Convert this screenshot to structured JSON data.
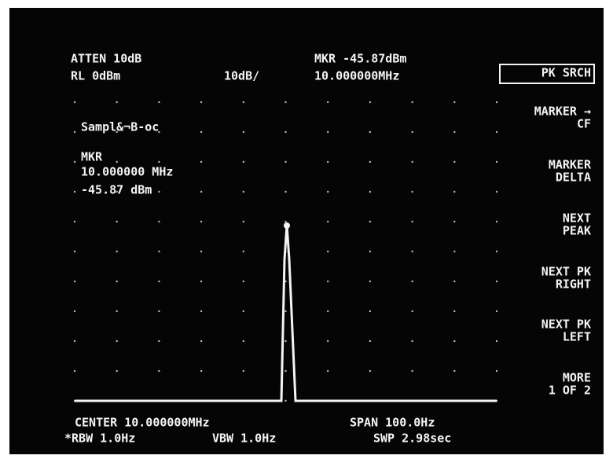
{
  "header": {
    "atten": "ATTEN 10dB",
    "ref_level": "RL 0dBm",
    "scale": "10dB/",
    "marker_amplitude": "MKR -45.87dBm",
    "marker_frequency": "10.000000MHz"
  },
  "detector": "Sampl&¬B-oc",
  "marker_readout": {
    "label": "MKR",
    "frequency": "10.000000 MHz",
    "amplitude": "-45.87 dBm"
  },
  "softkeys": [
    {
      "lines": [
        "PK SRCH"
      ]
    },
    {
      "lines": [
        "MARKER →",
        "CF"
      ]
    },
    {
      "lines": [
        "MARKER",
        "DELTA"
      ]
    },
    {
      "lines": [
        "NEXT",
        "PEAK"
      ]
    },
    {
      "lines": [
        "NEXT PK",
        "RIGHT"
      ]
    },
    {
      "lines": [
        "NEXT PK",
        "LEFT"
      ]
    },
    {
      "lines": [
        "MORE",
        "1 OF 2"
      ]
    }
  ],
  "footer": {
    "center": "CENTER 10.000000MHz",
    "span": "SPAN 100.0Hz",
    "rbw": "*RBW 1.0Hz",
    "vbw": "VBW 1.0Hz",
    "sweep": "SWP 2.98sec"
  }
}
